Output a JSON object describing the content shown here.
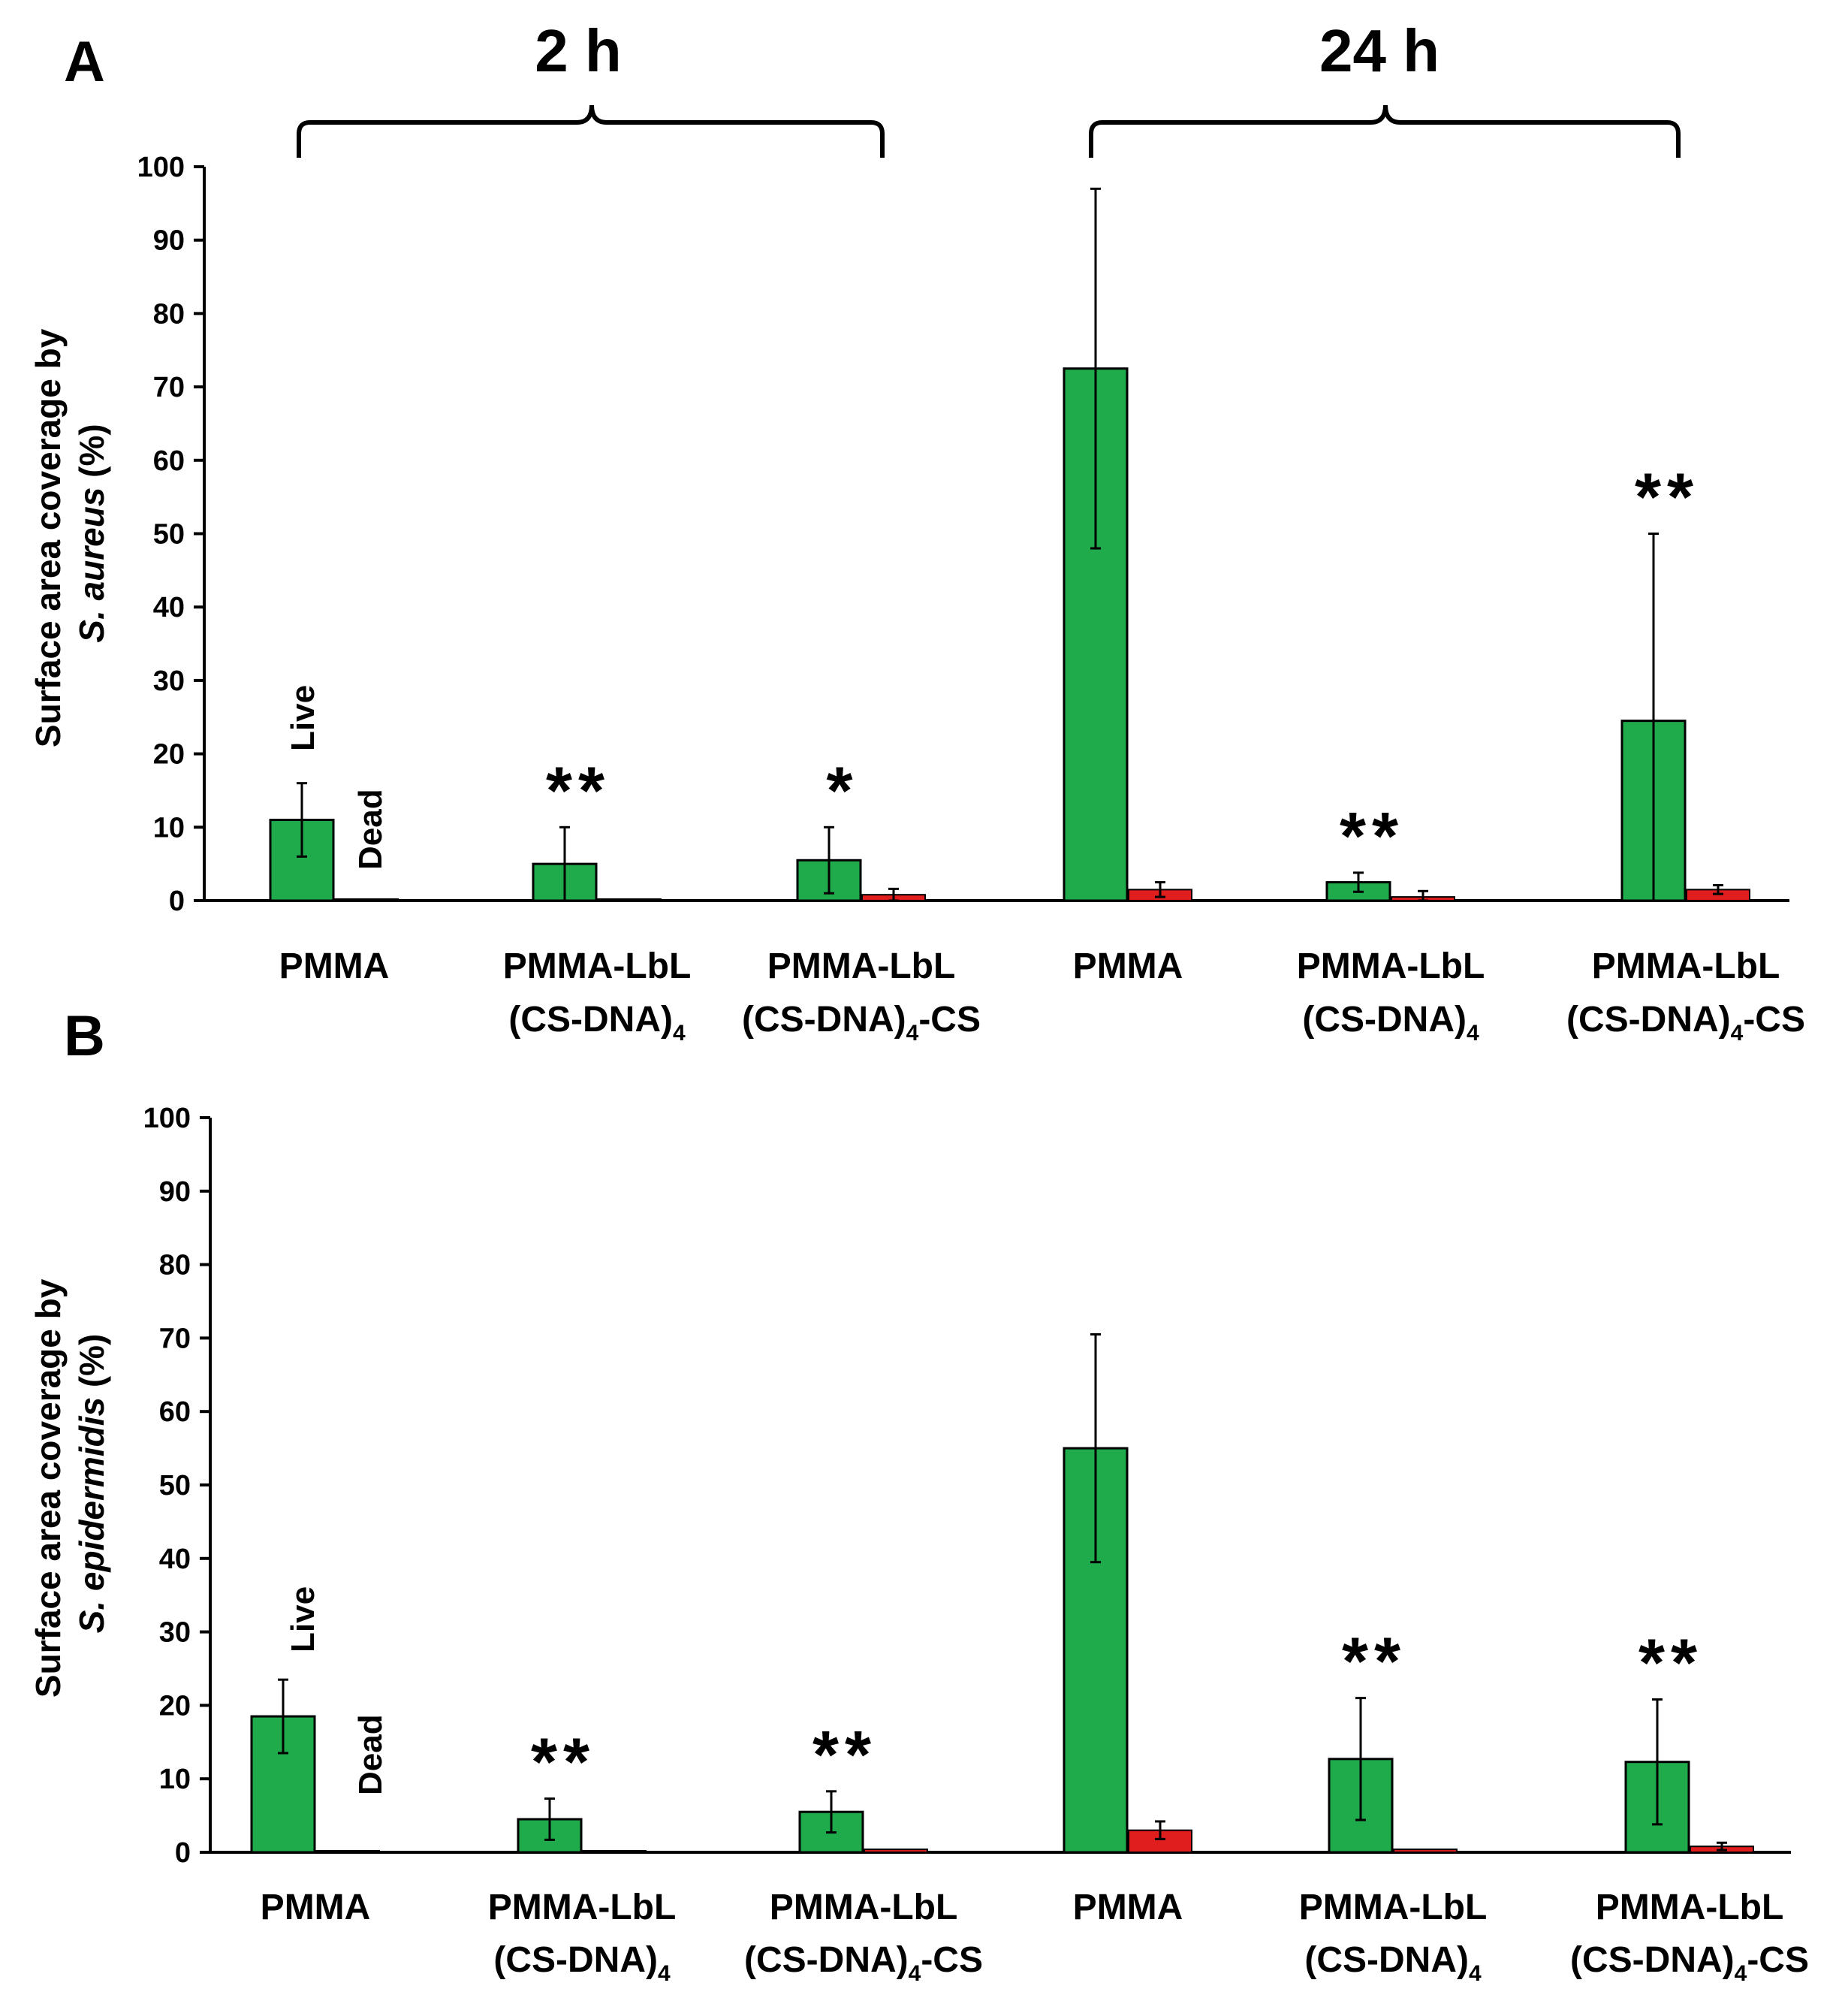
{
  "groups": [
    {
      "label": "2 h"
    },
    {
      "label": "24 h"
    }
  ],
  "colors": {
    "live": "#1faa4b",
    "dead": "#e01e1e",
    "axis": "#000000"
  },
  "chart_data": [
    {
      "type": "bar",
      "panel": "A",
      "ylabel_line1": "Surface area coverage by",
      "ylabel_line2_species": "S. aureus",
      "ylabel_line2_unit": "(%)",
      "ylim": [
        0,
        100
      ],
      "yticks": [
        0,
        10,
        20,
        30,
        40,
        50,
        60,
        70,
        80,
        90,
        100
      ],
      "categories": [
        {
          "line1": "PMMA",
          "line2": ""
        },
        {
          "line1": "PMMA-LbL",
          "line2": "(CS-DNA)",
          "sub": "4",
          "tail": ""
        },
        {
          "line1": "PMMA-LbL",
          "line2": "(CS-DNA)",
          "sub": "4",
          "tail": "-CS"
        },
        {
          "line1": "PMMA",
          "line2": ""
        },
        {
          "line1": "PMMA-LbL",
          "line2": "(CS-DNA)",
          "sub": "4",
          "tail": ""
        },
        {
          "line1": "PMMA-LbL",
          "line2": "(CS-DNA)",
          "sub": "4",
          "tail": "-CS"
        }
      ],
      "series": [
        {
          "name": "Live",
          "values": [
            11,
            5,
            5.5,
            72.5,
            2.5,
            24.5
          ],
          "errors": [
            5,
            5,
            4.5,
            24.5,
            1.3,
            25.5
          ]
        },
        {
          "name": "Dead",
          "values": [
            0.2,
            0.2,
            0.8,
            1.5,
            0.5,
            1.5
          ],
          "errors": [
            0,
            0,
            0.8,
            1,
            0.8,
            0.6
          ]
        }
      ],
      "significance": [
        "",
        "**",
        "*",
        "",
        "**",
        "**"
      ]
    },
    {
      "type": "bar",
      "panel": "B",
      "ylabel_line1": "Surface area coverage by",
      "ylabel_line2_species": "S. epidermidis",
      "ylabel_line2_unit": "(%)",
      "ylim": [
        0,
        100
      ],
      "yticks": [
        0,
        10,
        20,
        30,
        40,
        50,
        60,
        70,
        80,
        90,
        100
      ],
      "categories": [
        {
          "line1": "PMMA",
          "line2": ""
        },
        {
          "line1": "PMMA-LbL",
          "line2": "(CS-DNA)",
          "sub": "4",
          "tail": ""
        },
        {
          "line1": "PMMA-LbL",
          "line2": "(CS-DNA)",
          "sub": "4",
          "tail": "-CS"
        },
        {
          "line1": "PMMA",
          "line2": ""
        },
        {
          "line1": "PMMA-LbL",
          "line2": "(CS-DNA)",
          "sub": "4",
          "tail": ""
        },
        {
          "line1": "PMMA-LbL",
          "line2": "(CS-DNA)",
          "sub": "4",
          "tail": "-CS"
        }
      ],
      "series": [
        {
          "name": "Live",
          "values": [
            18.5,
            4.5,
            5.5,
            55,
            12.7,
            12.3
          ],
          "errors": [
            5,
            2.8,
            2.8,
            15.5,
            8.3,
            8.5
          ]
        },
        {
          "name": "Dead",
          "values": [
            0.2,
            0.2,
            0.4,
            3,
            0.4,
            0.8
          ],
          "errors": [
            0,
            0,
            0,
            1.2,
            0,
            0.5
          ]
        }
      ],
      "significance": [
        "",
        "**",
        "**",
        "",
        "**",
        "**"
      ]
    }
  ]
}
